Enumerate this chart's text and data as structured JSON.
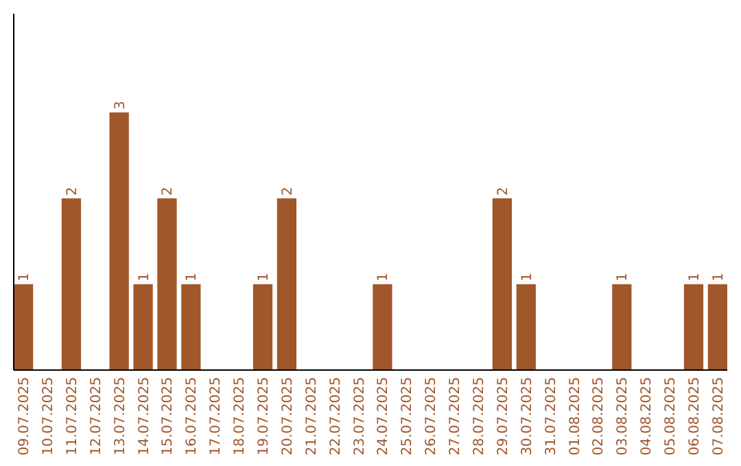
{
  "chart_data": {
    "type": "bar",
    "categories": [
      "09.07.2025",
      "10.07.2025",
      "11.07.2025",
      "12.07.2025",
      "13.07.2025",
      "14.07.2025",
      "15.07.2025",
      "16.07.2025",
      "17.07.2025",
      "18.07.2025",
      "19.07.2025",
      "20.07.2025",
      "21.07.2025",
      "22.07.2025",
      "23.07.2025",
      "24.07.2025",
      "25.07.2025",
      "26.07.2025",
      "27.07.2025",
      "28.07.2025",
      "29.07.2025",
      "30.07.2025",
      "31.07.2025",
      "01.08.2025",
      "02.08.2025",
      "03.08.2025",
      "04.08.2025",
      "05.08.2025",
      "06.08.2025",
      "07.08.2025"
    ],
    "values": [
      1,
      0,
      2,
      0,
      3,
      1,
      2,
      1,
      0,
      0,
      1,
      2,
      0,
      0,
      0,
      1,
      0,
      0,
      0,
      0,
      2,
      1,
      0,
      0,
      0,
      1,
      0,
      0,
      1,
      1
    ],
    "value_labels": [
      "1",
      null,
      "2",
      null,
      "3",
      "1",
      "2",
      "1",
      null,
      null,
      "1",
      "2",
      null,
      null,
      null,
      "1",
      null,
      null,
      null,
      null,
      "2",
      "1",
      null,
      null,
      null,
      "1",
      null,
      null,
      "1",
      "1"
    ],
    "color": "#a0572a",
    "ylim": [
      0,
      4.15
    ],
    "tick_labels": "x",
    "grid": false
  }
}
